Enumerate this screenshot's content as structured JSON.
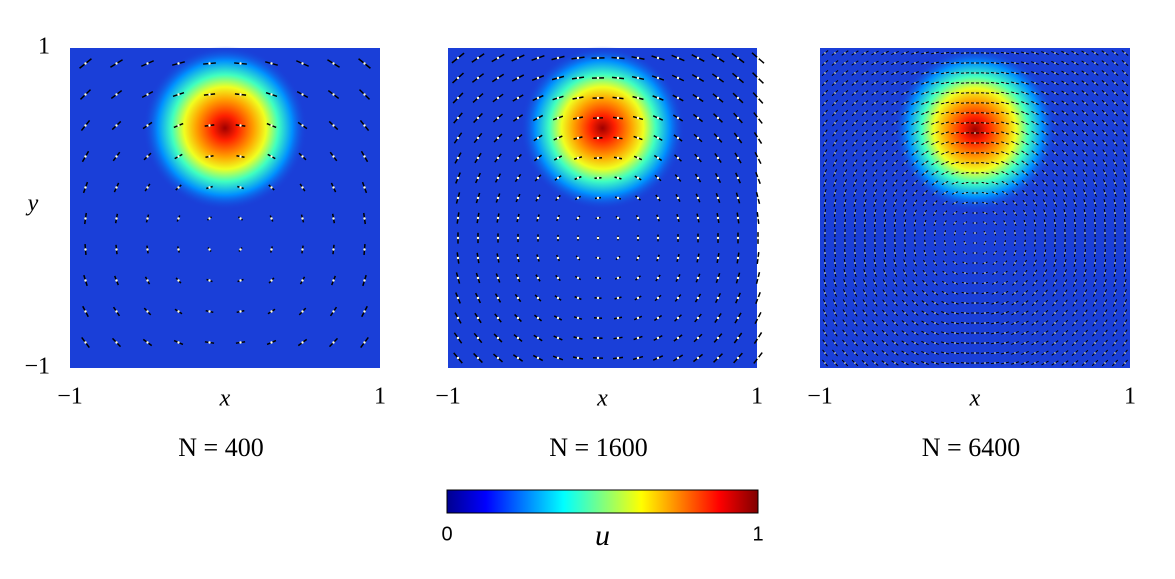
{
  "chart_data": [
    {
      "type": "heatmap",
      "title": "N = 400",
      "xlabel": "x",
      "ylabel": "y",
      "xlim": [
        -1,
        1
      ],
      "ylim": [
        -1,
        1
      ],
      "xticks": [
        {
          "value": -1,
          "label": "−1"
        },
        1
      ],
      "yticks": [
        {
          "value": -1,
          "label": "−1"
        },
        1
      ],
      "peak": {
        "x": 0,
        "y": 0.5
      }
    },
    {
      "type": "heatmap",
      "title": "N = 1600",
      "xlabel": "x",
      "xlim": [
        -1,
        1
      ],
      "ylim": [
        -1,
        1
      ],
      "xticks": [
        {
          "value": -1,
          "label": "−1"
        },
        1
      ],
      "peak": {
        "x": 0,
        "y": 0.5
      }
    },
    {
      "type": "heatmap",
      "title": "N = 6400",
      "xlabel": "x",
      "xlim": [
        -1,
        1
      ],
      "ylim": [
        -1,
        1
      ],
      "xticks": [
        {
          "value": -1,
          "label": "−1"
        },
        1
      ],
      "peak": {
        "x": 0,
        "y": 0.49
      }
    }
  ],
  "colorbar": {
    "lim": [
      0,
      1
    ],
    "ticks": [
      0,
      1
    ],
    "label": "u"
  }
}
